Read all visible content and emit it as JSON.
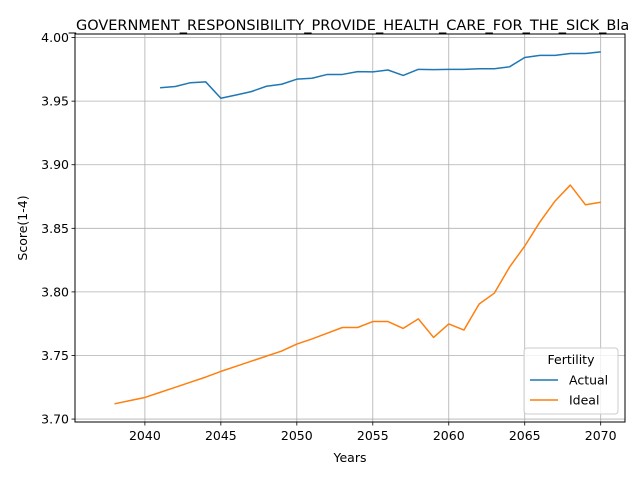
{
  "chart_data": {
    "type": "line",
    "title": "_GOVERNMENT_RESPONSIBILITY_PROVIDE_HEALTH_CARE_FOR_THE_SICK_Bla",
    "xlabel": "Years",
    "ylabel": "Score(1-4)",
    "xlim": [
      2035.4,
      2071.6
    ],
    "ylim": [
      3.6977,
      4.0028
    ],
    "xticks": [
      2040,
      2045,
      2050,
      2055,
      2060,
      2065,
      2070
    ],
    "xtick_labels": [
      "2040",
      "2045",
      "2050",
      "2055",
      "2060",
      "2065",
      "2070"
    ],
    "yticks": [
      3.7,
      3.75,
      3.8,
      3.85,
      3.9,
      3.95,
      4.0
    ],
    "ytick_labels": [
      "3.70",
      "3.75",
      "3.80",
      "3.85",
      "3.90",
      "3.95",
      "4.00"
    ],
    "grid": true,
    "legend": {
      "title": "Fertility",
      "location": "lower-right"
    },
    "series": [
      {
        "name": "Actual",
        "color": "#1f77b4",
        "points": [
          [
            2041,
            3.9605
          ],
          [
            2042,
            3.9615
          ],
          [
            2043,
            3.9645
          ],
          [
            2044,
            3.9652
          ],
          [
            2045,
            3.9523
          ],
          [
            2046,
            3.9548
          ],
          [
            2047,
            3.9575
          ],
          [
            2048,
            3.9617
          ],
          [
            2049,
            3.9633
          ],
          [
            2050,
            3.9673
          ],
          [
            2051,
            3.968
          ],
          [
            2052,
            3.971
          ],
          [
            2053,
            3.971
          ],
          [
            2054,
            3.9732
          ],
          [
            2055,
            3.973
          ],
          [
            2056,
            3.9745
          ],
          [
            2057,
            3.9702
          ],
          [
            2058,
            3.975
          ],
          [
            2059,
            3.9748
          ],
          [
            2060,
            3.975
          ],
          [
            2061,
            3.975
          ],
          [
            2062,
            3.9755
          ],
          [
            2063,
            3.9755
          ],
          [
            2064,
            3.977
          ],
          [
            2065,
            3.9843
          ],
          [
            2066,
            3.986
          ],
          [
            2067,
            3.986
          ],
          [
            2068,
            3.9875
          ],
          [
            2069,
            3.9875
          ],
          [
            2070,
            3.9887
          ]
        ]
      },
      {
        "name": "Ideal",
        "color": "#ff7f0e",
        "points": [
          [
            2038,
            3.712
          ],
          [
            2039,
            3.7145
          ],
          [
            2040,
            3.717
          ],
          [
            2041,
            3.721
          ],
          [
            2042,
            3.725
          ],
          [
            2043,
            3.729
          ],
          [
            2044,
            3.733
          ],
          [
            2045,
            3.7375
          ],
          [
            2046,
            3.7415
          ],
          [
            2047,
            3.7455
          ],
          [
            2048,
            3.7495
          ],
          [
            2049,
            3.7535
          ],
          [
            2050,
            3.759
          ],
          [
            2051,
            3.763
          ],
          [
            2052,
            3.7675
          ],
          [
            2053,
            3.772
          ],
          [
            2054,
            3.772
          ],
          [
            2055,
            3.7767
          ],
          [
            2056,
            3.7767
          ],
          [
            2057,
            3.7713
          ],
          [
            2058,
            3.7788
          ],
          [
            2059,
            3.7642
          ],
          [
            2060,
            3.7748
          ],
          [
            2061,
            3.77
          ],
          [
            2062,
            3.7905
          ],
          [
            2063,
            3.799
          ],
          [
            2064,
            3.8195
          ],
          [
            2065,
            3.836
          ],
          [
            2066,
            3.855
          ],
          [
            2067,
            3.8715
          ],
          [
            2068,
            3.884
          ],
          [
            2069,
            3.8685
          ],
          [
            2070,
            3.8705
          ]
        ]
      }
    ]
  }
}
